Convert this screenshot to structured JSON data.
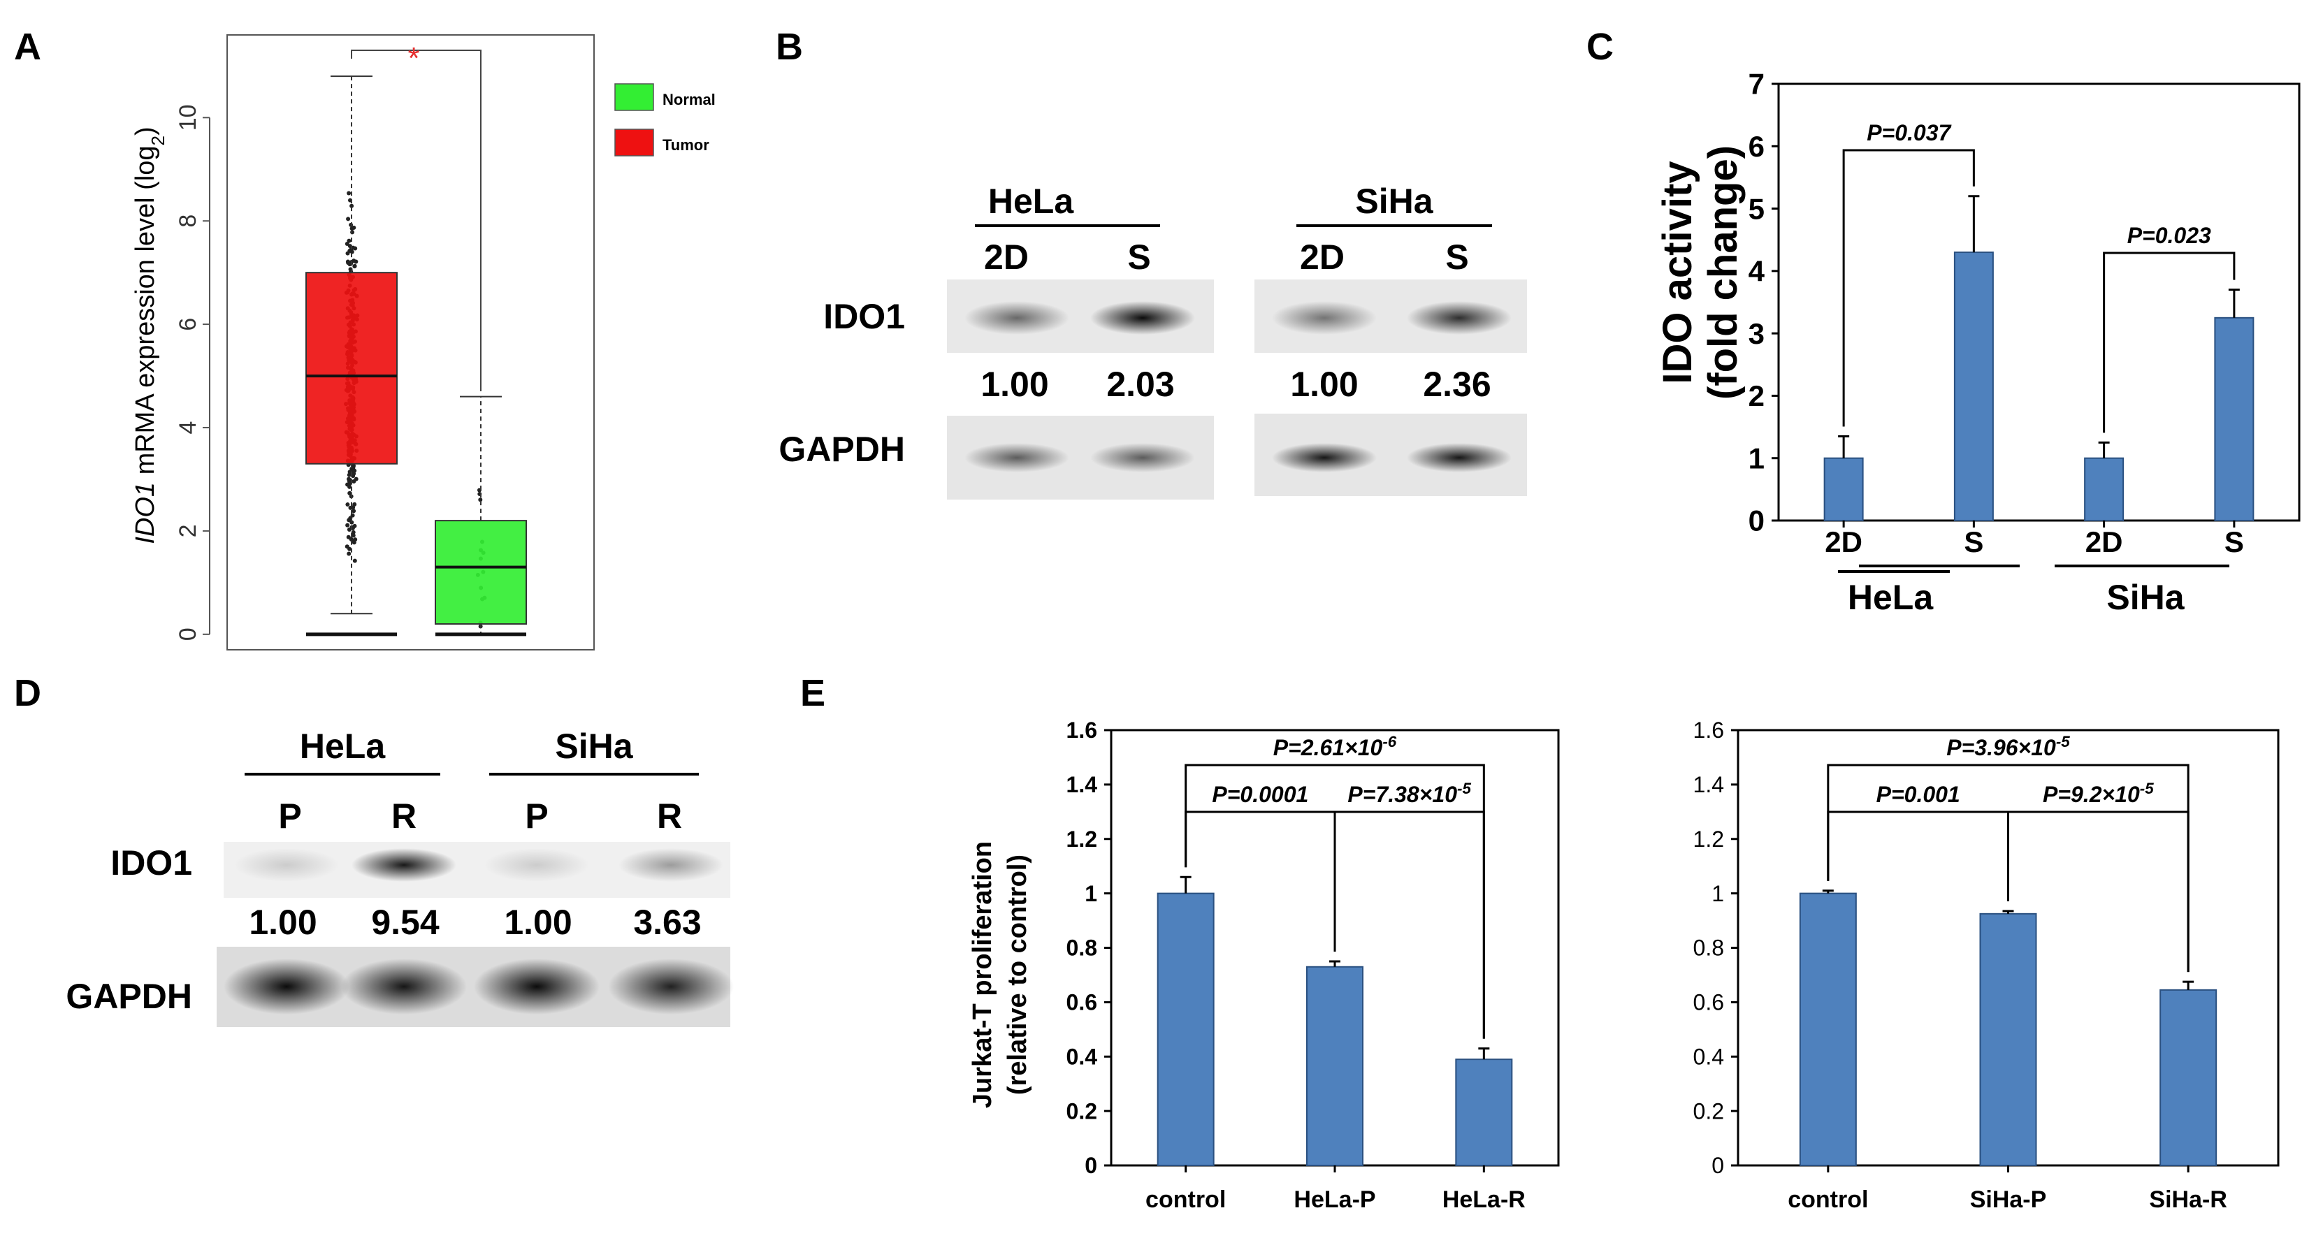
{
  "panels": {
    "a": "A",
    "b": "B",
    "c": "C",
    "d": "D",
    "e": "E"
  },
  "chart_data": [
    {
      "id": "A",
      "type": "box",
      "ylabel_gene": "IDO1",
      "ylabel_rest": " mRMA expression level (log",
      "ylabel_sub": "2",
      "ylabel_close": ")",
      "yticks": [
        0,
        2,
        4,
        6,
        8,
        10
      ],
      "ylim": [
        -0.3,
        11.6
      ],
      "significance": "*",
      "legend": [
        {
          "name": "Normal",
          "color": "#33ee33"
        },
        {
          "name": "Tumor",
          "color": "#ee1111"
        }
      ],
      "boxes": [
        {
          "name": "Tumor",
          "color": "#ee1111",
          "q1": 3.3,
          "median": 5.0,
          "q3": 7.0,
          "whisker_low": 0.4,
          "whisker_high": 10.8,
          "min_points": 0
        },
        {
          "name": "Normal",
          "color": "#33ee33",
          "q1": 0.2,
          "median": 1.3,
          "q3": 2.2,
          "whisker_low": 0.0,
          "whisker_high": 4.6,
          "min_points": 0
        }
      ]
    },
    {
      "id": "C",
      "type": "bar",
      "ylabel_top": "IDO activity",
      "ylabel_bottom": "(fold change)",
      "yticks": [
        "0",
        "1",
        "2",
        "3",
        "4",
        "5",
        "6",
        "7"
      ],
      "ylim": [
        0,
        7
      ],
      "categories": [
        "2D",
        "S",
        "2D",
        "S"
      ],
      "groups": [
        "HeLa",
        "SiHa"
      ],
      "values": [
        1.0,
        4.3,
        1.0,
        3.25
      ],
      "errors": [
        0.35,
        0.9,
        0.25,
        0.45
      ],
      "comparisons": [
        {
          "label": "P=0.037",
          "from": 0,
          "to": 1
        },
        {
          "label": "P=0.023",
          "from": 2,
          "to": 3
        }
      ],
      "color": "#4f81bd"
    },
    {
      "id": "E-left",
      "type": "bar",
      "ylabel_top": "Jurkat-T proliferation",
      "ylabel_bottom": "(relative to control)",
      "yticks": [
        "0",
        "0.2",
        "0.4",
        "0.6",
        "0.8",
        "1",
        "1.2",
        "1.4",
        "1.6"
      ],
      "ylim": [
        0,
        1.6
      ],
      "categories": [
        "control",
        "HeLa-P",
        "HeLa-R"
      ],
      "values": [
        1.0,
        0.73,
        0.39
      ],
      "errors": [
        0.06,
        0.02,
        0.04
      ],
      "comparisons": [
        {
          "label": "P=0.0001",
          "from": 0,
          "to": 1
        },
        {
          "label": "P=7.38×10",
          "sup": "-5",
          "from": 1,
          "to": 2
        },
        {
          "label": "P=2.61×10",
          "sup": "-6",
          "from": 0,
          "to": 2
        }
      ],
      "color": "#4f81bd"
    },
    {
      "id": "E-right",
      "type": "bar",
      "yticks": [
        "0",
        "0.2",
        "0.4",
        "0.6",
        "0.8",
        "1",
        "1.2",
        "1.4",
        "1.6"
      ],
      "ylim": [
        0,
        1.6
      ],
      "categories": [
        "control",
        "SiHa-P",
        "SiHa-R"
      ],
      "values": [
        1.0,
        0.925,
        0.645
      ],
      "errors": [
        0.01,
        0.01,
        0.03
      ],
      "comparisons": [
        {
          "label": "P=0.001",
          "from": 0,
          "to": 1
        },
        {
          "label": "P=9.2×10",
          "sup": "-5",
          "from": 1,
          "to": 2
        },
        {
          "label": "P=3.96×10",
          "sup": "-5",
          "from": 0,
          "to": 2
        }
      ],
      "color": "#4f81bd"
    }
  ],
  "blots": {
    "B": {
      "groups": [
        "HeLa",
        "SiHa"
      ],
      "lanes": [
        "2D",
        "S",
        "2D",
        "S"
      ],
      "rows": [
        "IDO1",
        "GAPDH"
      ],
      "quant": [
        "1.00",
        "2.03",
        "1.00",
        "2.36"
      ],
      "ido_intensity": [
        0.55,
        0.95,
        0.5,
        0.8
      ],
      "gapdh_intensity": [
        0.6,
        0.6,
        0.9,
        0.9
      ]
    },
    "D": {
      "groups": [
        "HeLa",
        "SiHa"
      ],
      "lanes": [
        "P",
        "R",
        "P",
        "R"
      ],
      "rows": [
        "IDO1",
        "GAPDH"
      ],
      "quant": [
        "1.00",
        "9.54",
        "1.00",
        "3.63"
      ],
      "ido_intensity": [
        0.15,
        0.9,
        0.15,
        0.35
      ],
      "gapdh_intensity": [
        0.95,
        0.9,
        0.95,
        0.85
      ]
    }
  }
}
